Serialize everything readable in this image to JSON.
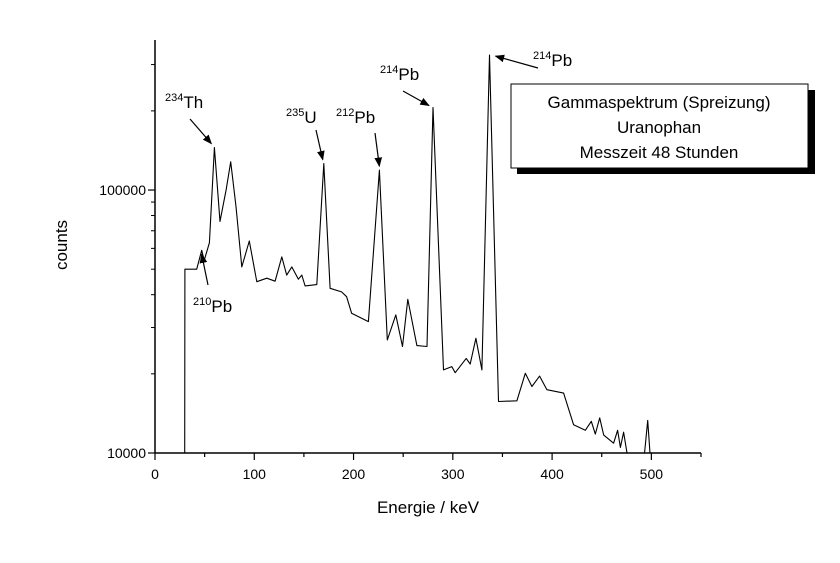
{
  "chart_data": {
    "type": "line",
    "title": "",
    "xlabel": "Energie / keV",
    "ylabel": "counts",
    "xlim": [
      0,
      550
    ],
    "ylim": [
      10000,
      372000
    ],
    "yscale": "log",
    "grid": false,
    "xticks": [
      0,
      100,
      200,
      300,
      400,
      500
    ],
    "xtick_labels": [
      "0",
      "100",
      "200",
      "300",
      "400",
      "500"
    ],
    "yticks": [
      10000,
      100000
    ],
    "ytick_labels": [
      "10000",
      "100000"
    ],
    "legend": {
      "placement": "top-right",
      "lines": [
        "Gammaspektrum (Spreizung)",
        "Uranophan",
        "Messzeit 48 Stunden"
      ]
    },
    "series": [
      {
        "name": "Gammaspektrum",
        "color": "#000000",
        "x": [
          29.9,
          30.1,
          31,
          42,
          47,
          49.6,
          54.8,
          59.8,
          65.5,
          71.6,
          76.3,
          81.6,
          87.4,
          95,
          102.5,
          112.6,
          121,
          127.7,
          132.7,
          137.8,
          144.5,
          147.9,
          151.2,
          163,
          170,
          176.4,
          188,
          193,
          198,
          215,
          226,
          234,
          242.6,
          249.3,
          254.7,
          263.8,
          274,
          280,
          290.6,
          299,
          302.4,
          313.5,
          317.5,
          323.3,
          329.3,
          337,
          346,
          364.6,
          373,
          379.7,
          387.4,
          394.8,
          411.6,
          421.7,
          433.5,
          439.5,
          443.5,
          448,
          452,
          462,
          466,
          468.8,
          472,
          475.5,
          477,
          492,
          496.3,
          499,
          501
        ],
        "y": [
          9000,
          50000,
          50000,
          50000,
          59000,
          54000,
          63000,
          145000,
          76000,
          100000,
          128000,
          86500,
          51000,
          64000,
          44800,
          46200,
          45000,
          55700,
          47500,
          51000,
          45800,
          47500,
          43200,
          43700,
          126000,
          42300,
          41000,
          39300,
          34000,
          31600,
          119000,
          26900,
          33500,
          25400,
          38400,
          25600,
          25400,
          206000,
          20700,
          21300,
          20200,
          22900,
          21800,
          27300,
          20700,
          326000,
          15700,
          15800,
          20100,
          17900,
          19600,
          17400,
          16900,
          12800,
          12200,
          13200,
          11800,
          13600,
          11700,
          10900,
          12200,
          10500,
          12000,
          10000,
          9000,
          9000,
          13300,
          9500,
          9000
        ]
      }
    ],
    "annotations": [
      {
        "mass": "234",
        "element": "Th",
        "x": 59.8,
        "y": 145000
      },
      {
        "mass": "210",
        "element": "Pb",
        "x": 47,
        "y": 59000
      },
      {
        "mass": "235",
        "element": "U",
        "x": 170,
        "y": 126000
      },
      {
        "mass": "212",
        "element": "Pb",
        "x": 226,
        "y": 119000
      },
      {
        "mass": "214",
        "element": "Pb",
        "x": 280,
        "y": 206000
      },
      {
        "mass": "214",
        "element": "Pb",
        "x": 337,
        "y": 326000
      }
    ]
  }
}
